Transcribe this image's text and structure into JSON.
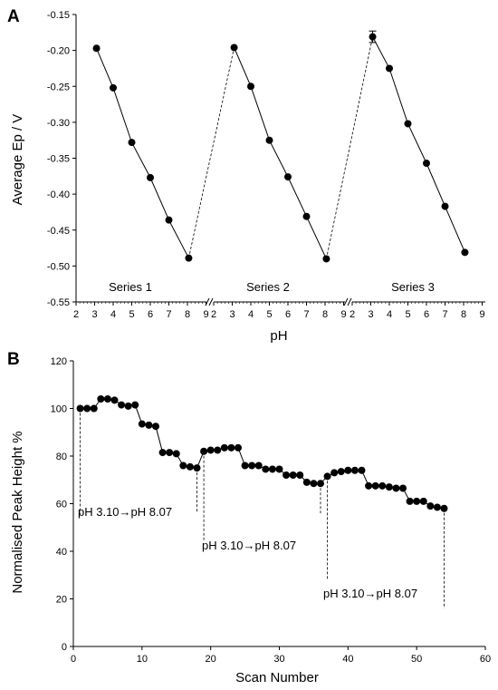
{
  "chart_data": [
    {
      "panel": "A",
      "type": "line",
      "xlabel": "pH",
      "ylabel": "Average Ep / V",
      "ylim": [
        -0.55,
        -0.15
      ],
      "yticks": [
        -0.15,
        -0.2,
        -0.25,
        -0.3,
        -0.35,
        -0.4,
        -0.45,
        -0.5,
        -0.55
      ],
      "x_segments": [
        {
          "ticks": [
            2,
            3,
            4,
            5,
            6,
            7,
            8,
            9
          ]
        },
        {
          "ticks": [
            2,
            3,
            4,
            5,
            6,
            7,
            8,
            9
          ]
        },
        {
          "ticks": [
            2,
            3,
            4,
            5,
            6,
            7,
            8,
            9
          ]
        }
      ],
      "series": [
        {
          "name": "Series 1",
          "x": [
            3.1,
            4.0,
            5.0,
            6.0,
            7.0,
            8.07
          ],
          "y": [
            -0.197,
            -0.252,
            -0.328,
            -0.377,
            -0.436,
            -0.489
          ]
        },
        {
          "name": "Series 2",
          "x": [
            3.1,
            4.0,
            5.0,
            6.0,
            7.0,
            8.07
          ],
          "y": [
            -0.196,
            -0.25,
            -0.325,
            -0.376,
            -0.431,
            -0.49
          ]
        },
        {
          "name": "Series 3",
          "x": [
            3.1,
            4.0,
            5.0,
            6.0,
            7.0,
            8.07
          ],
          "y": [
            -0.181,
            -0.225,
            -0.302,
            -0.357,
            -0.417,
            -0.481
          ],
          "error_first": 0.008
        }
      ],
      "grid": false
    },
    {
      "panel": "B",
      "type": "scatter",
      "xlabel": "Scan Number",
      "ylabel": "Normalised Peak Height %",
      "xlim": [
        0,
        60
      ],
      "ylim": [
        0,
        120
      ],
      "xticks": [
        0,
        10,
        20,
        30,
        40,
        50,
        60
      ],
      "yticks": [
        0,
        20,
        40,
        60,
        80,
        100,
        120
      ],
      "x": [
        1,
        2,
        3,
        4,
        5,
        6,
        7,
        8,
        9,
        10,
        11,
        12,
        13,
        14,
        15,
        16,
        17,
        18,
        19,
        20,
        21,
        22,
        23,
        24,
        25,
        26,
        27,
        28,
        29,
        30,
        31,
        32,
        33,
        34,
        35,
        36,
        37,
        38,
        39,
        40,
        41,
        42,
        43,
        44,
        45,
        46,
        47,
        48,
        49,
        50,
        51,
        52,
        53,
        54
      ],
      "y": [
        100,
        100,
        100,
        104,
        104,
        103.5,
        101.5,
        101,
        101.5,
        93.5,
        93,
        92.5,
        81.5,
        81.5,
        81,
        76,
        75.5,
        75,
        82,
        82.5,
        82.5,
        83.5,
        83.5,
        83.5,
        76,
        76,
        76,
        74.5,
        74.5,
        74.5,
        72,
        72,
        72,
        69,
        68.5,
        68.5,
        71.5,
        73,
        73.5,
        74,
        74,
        74,
        67.5,
        67.5,
        67.5,
        67,
        66.5,
        66.5,
        61,
        61,
        61,
        59,
        58.5,
        58
      ],
      "annotations": [
        {
          "text": "pH 3.10→pH 8.07",
          "line_x": 1,
          "y_from": 100,
          "y_to": 55
        },
        {
          "text": "pH 3.10→pH 8.07",
          "line_x": 18,
          "y_from": 75,
          "y_to": 56
        },
        {
          "text": "pH 3.10→pH 8.07",
          "line_x": 19,
          "y_from": 82,
          "y_to": 44
        },
        {
          "text": "pH 3.10→pH 8.07",
          "line_x": 36,
          "y_from": 68.5,
          "y_to": 56
        },
        {
          "text": "pH 3.10→pH 8.07",
          "line_x": 37,
          "y_from": 71.5,
          "y_to": 28
        },
        {
          "text": "pH 3.10→pH 8.07",
          "line_x": 54,
          "y_from": 58,
          "y_to": 16
        }
      ],
      "annotation_labels": [
        "pH 3.10→pH 8.07",
        "pH 3.10→pH 8.07",
        "pH 3.10→pH 8.07"
      ],
      "grid": false
    }
  ],
  "panel_labels": [
    "A",
    "B"
  ]
}
